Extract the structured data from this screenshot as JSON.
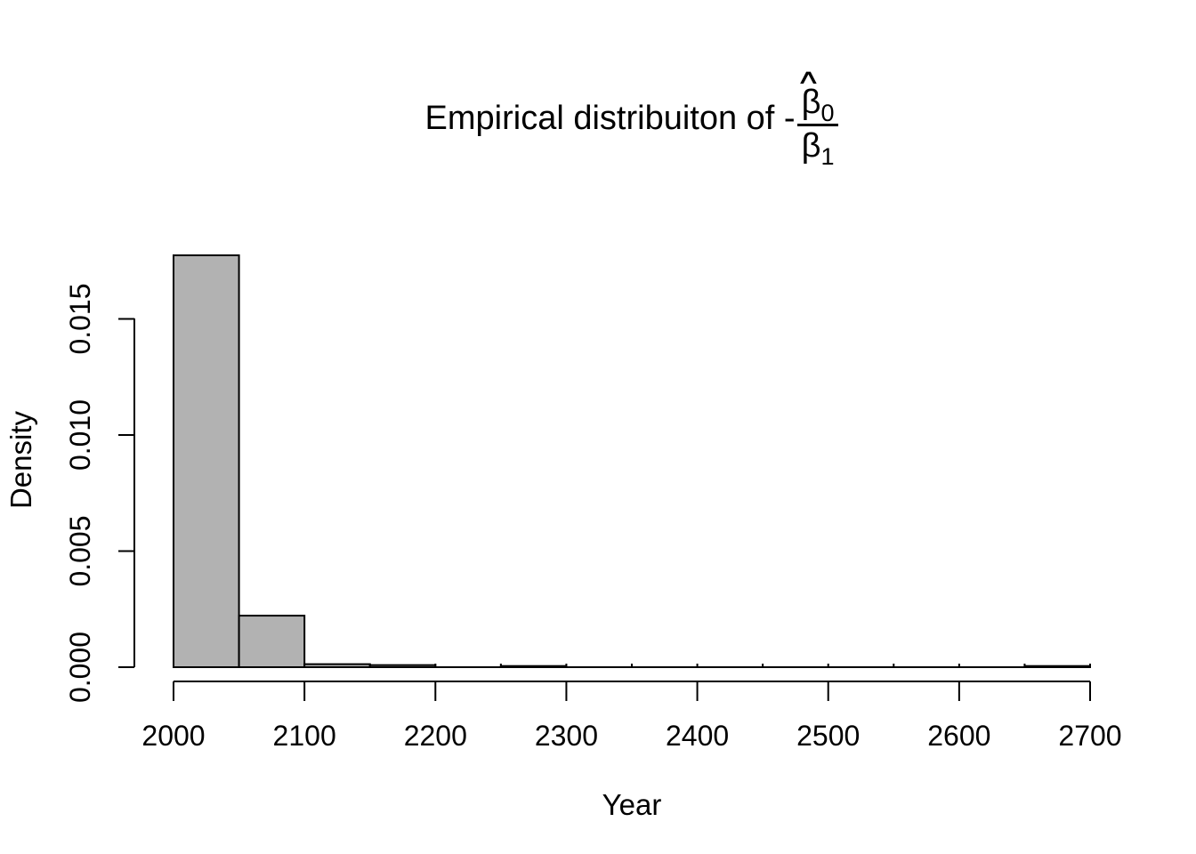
{
  "title": {
    "full_text": "Empirical distribuiton of -(beta0_hat / beta1)",
    "prefix": "Empirical distribuiton of ",
    "minus": "-",
    "hat": "∧",
    "numerator": "β",
    "numerator_sub": "0",
    "denominator": "β",
    "denominator_sub": "1"
  },
  "chart_data": {
    "type": "bar",
    "subtype": "histogram",
    "title": "Empirical distribuiton of -β̂0/β1",
    "xlabel": "Year",
    "ylabel": "Density",
    "xlim": [
      2000,
      2700
    ],
    "ylim": [
      0,
      0.0178
    ],
    "bin_width": 50,
    "bin_edges": [
      2000,
      2050,
      2100,
      2150,
      2200,
      2250,
      2300,
      2350,
      2400,
      2450,
      2500,
      2550,
      2600,
      2650,
      2700
    ],
    "densities": [
      0.01774,
      0.00222,
      0.00013,
      9e-05,
      0,
      5e-05,
      0,
      0,
      0,
      0,
      0,
      0,
      0,
      5e-05
    ],
    "x_ticks": [
      2000,
      2100,
      2200,
      2300,
      2400,
      2500,
      2600,
      2700
    ],
    "x_tick_labels": [
      "2000",
      "2100",
      "2200",
      "2300",
      "2400",
      "2500",
      "2600",
      "2700"
    ],
    "y_ticks": [
      0,
      0.005,
      0.01,
      0.015
    ],
    "y_tick_labels": [
      "0.000",
      "0.005",
      "0.010",
      "0.015"
    ],
    "grid": false,
    "legend": "none",
    "bar_fill": "#b2b2b2",
    "bar_stroke": "#000000",
    "axis_color": "#000000",
    "text_color": "#000000",
    "background": "#ffffff"
  }
}
